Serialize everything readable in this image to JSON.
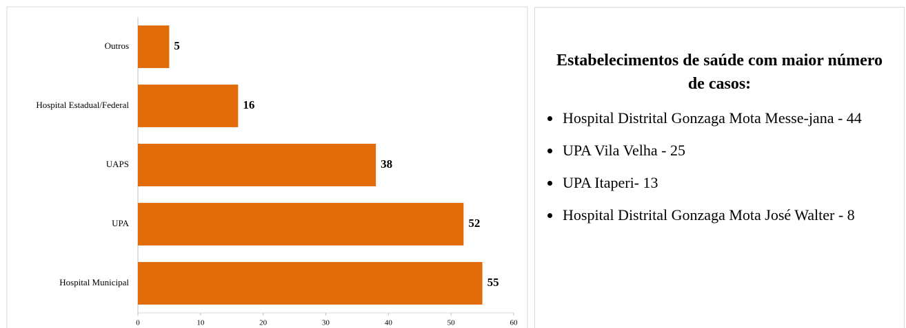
{
  "chart_data": {
    "type": "barh",
    "categories": [
      "Outros",
      "Hospital Estadual/Federal",
      "UAPS",
      "UPA",
      "Hospital Municipal"
    ],
    "values": [
      5,
      16,
      38,
      52,
      55
    ],
    "color": "#e36c0a",
    "xlim": [
      0,
      60
    ],
    "xticks": [
      0,
      10,
      20,
      30,
      40,
      50,
      60
    ],
    "grid": false
  },
  "panel": {
    "title": "Estabelecimentos de saúde com maior número de casos:",
    "items": [
      "Hospital Distrital Gonzaga Mota Messe-jana - 44",
      "UPA Vila Velha - 25",
      "UPA Itaperi-  13",
      "Hospital Distrital Gonzaga Mota José Walter - 8"
    ]
  }
}
